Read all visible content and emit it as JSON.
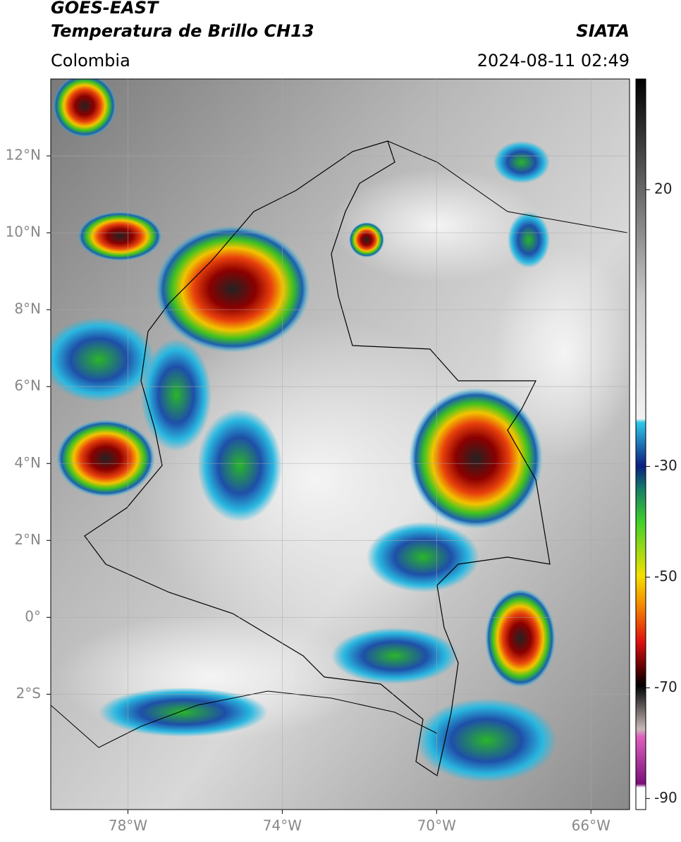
{
  "header": {
    "satellite": "GOES-EAST",
    "product": "Temperatura de Brillo CH13",
    "source": "SIATA",
    "region": "Colombia",
    "datetime": "2024-08-11 02:49"
  },
  "map": {
    "xlim": [
      -80,
      -65
    ],
    "ylim": [
      -5,
      14
    ],
    "xticks": [
      {
        "value": -78,
        "label": "78°W"
      },
      {
        "value": -74,
        "label": "74°W"
      },
      {
        "value": -70,
        "label": "70°W"
      },
      {
        "value": -66,
        "label": "66°W"
      }
    ],
    "yticks": [
      {
        "value": 12,
        "label": "12°N"
      },
      {
        "value": 10,
        "label": "10°N"
      },
      {
        "value": 8,
        "label": "8°N"
      },
      {
        "value": 6,
        "label": "6°N"
      },
      {
        "value": 4,
        "label": "4°N"
      },
      {
        "value": 2,
        "label": "2°N"
      },
      {
        "value": 0,
        "label": "0°"
      },
      {
        "value": -2,
        "label": "2°S"
      }
    ],
    "grid": true
  },
  "colorbar": {
    "lim": [
      -92,
      40
    ],
    "ticks": [
      20,
      -30,
      -50,
      -70,
      -90
    ]
  }
}
